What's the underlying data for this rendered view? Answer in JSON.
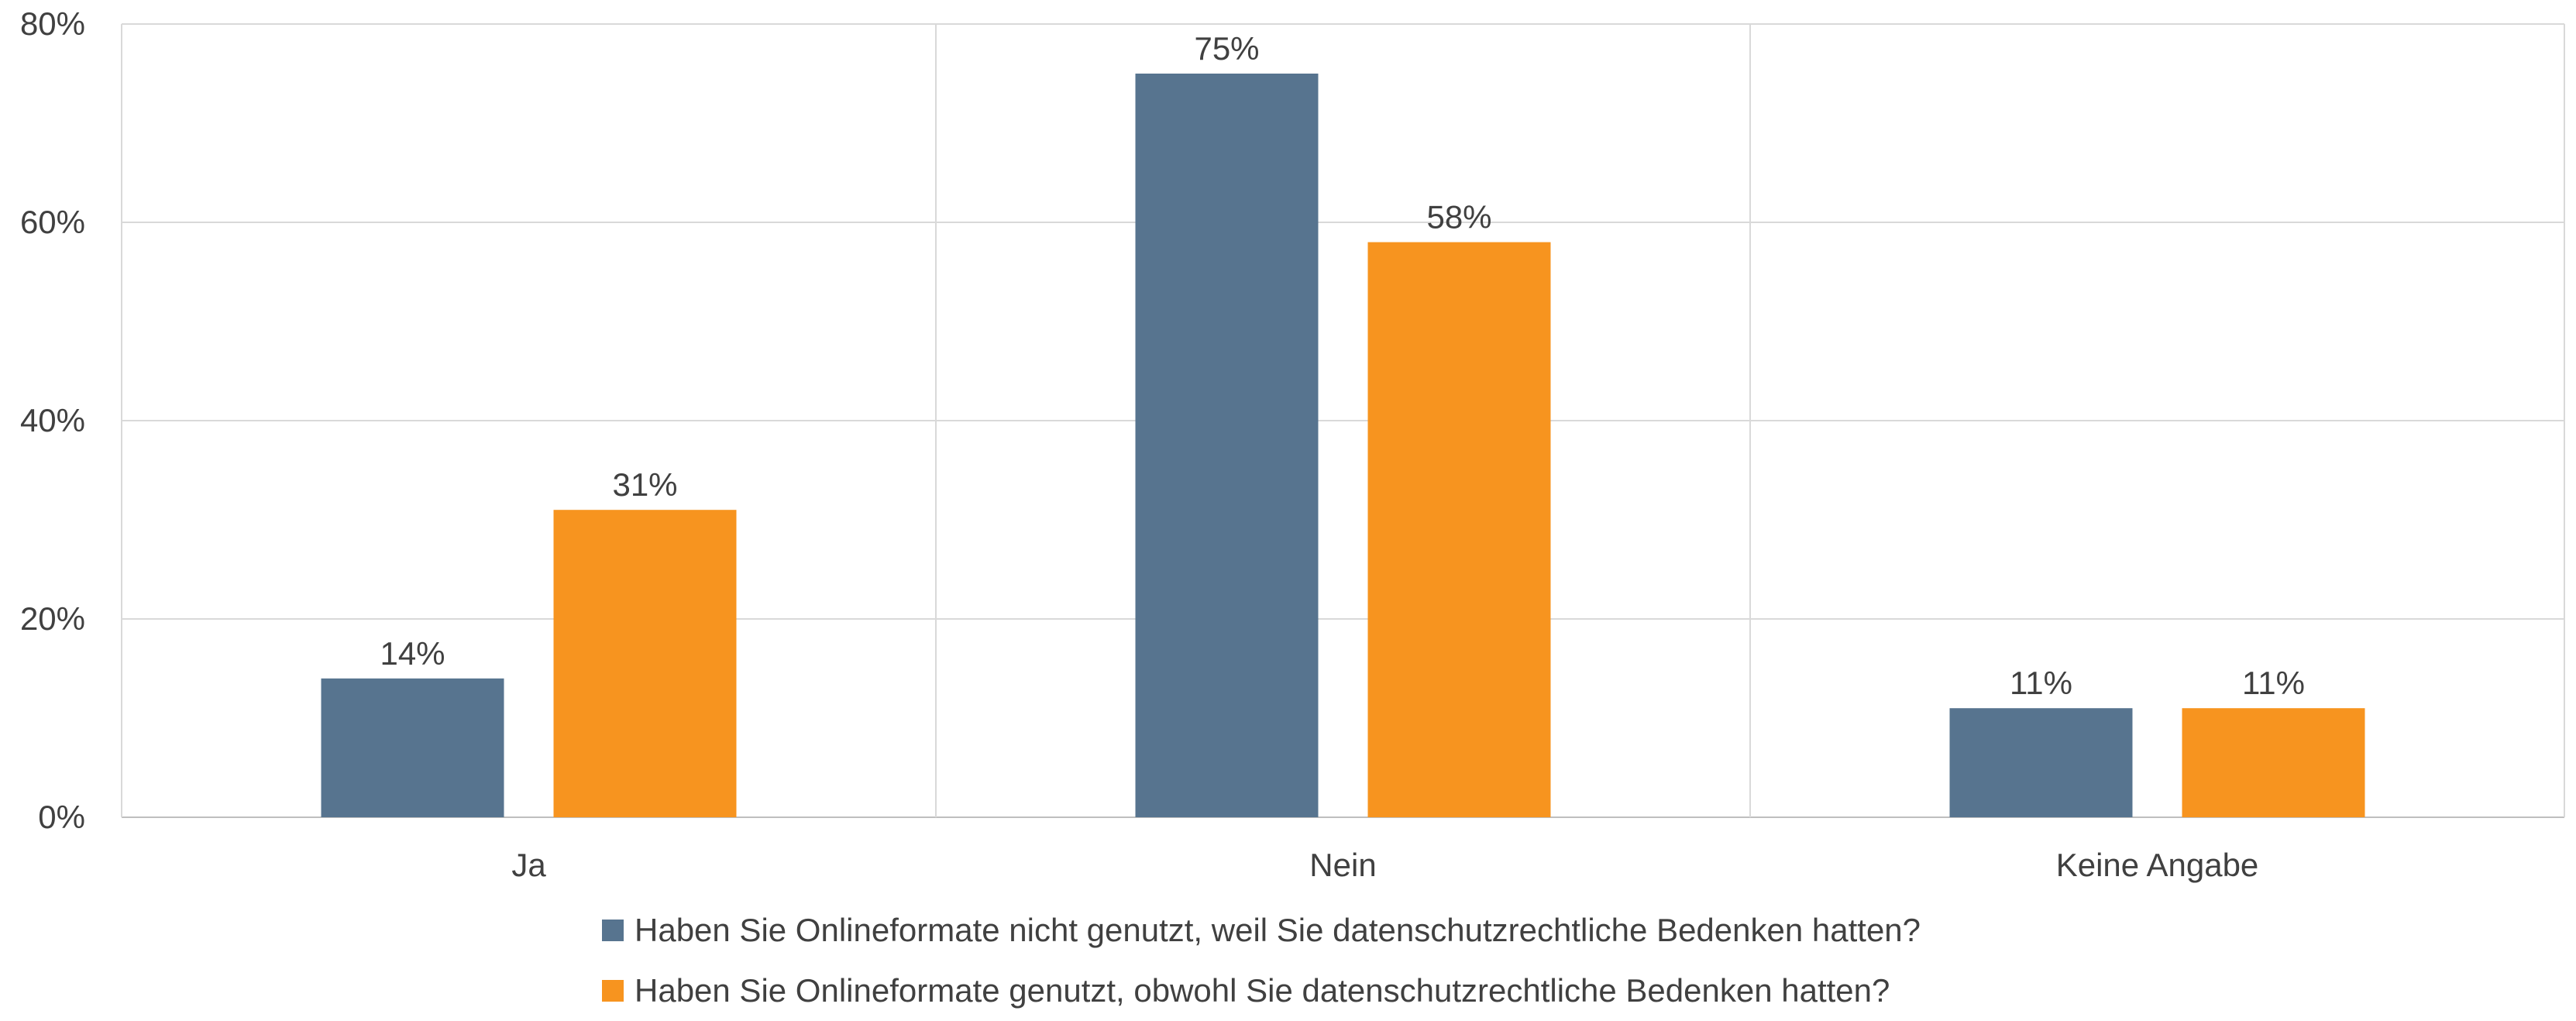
{
  "chart_data": {
    "type": "bar",
    "title": "",
    "xlabel": "",
    "ylabel": "",
    "categories": [
      "Ja",
      "Nein",
      "Keine Angabe"
    ],
    "series": [
      {
        "name": "Haben Sie Onlineformate nicht genutzt, weil Sie datenschutzrechtliche Bedenken hatten?",
        "values": [
          14,
          75,
          11
        ],
        "labels": [
          "14%",
          "75%",
          "11%"
        ],
        "color": "#57748F"
      },
      {
        "name": "Haben Sie Onlineformate genutzt, obwohl Sie datenschutzrechtliche Bedenken hatten?",
        "values": [
          31,
          58,
          11
        ],
        "labels": [
          "31%",
          "58%",
          "11%"
        ],
        "color": "#F7941F"
      }
    ],
    "ylim": [
      0,
      80
    ],
    "yticks": [
      0,
      20,
      40,
      60,
      80
    ],
    "ytick_labels": [
      "0%",
      "20%",
      "40%",
      "60%",
      "80%"
    ],
    "grid": true,
    "legend_position": "bottom"
  }
}
